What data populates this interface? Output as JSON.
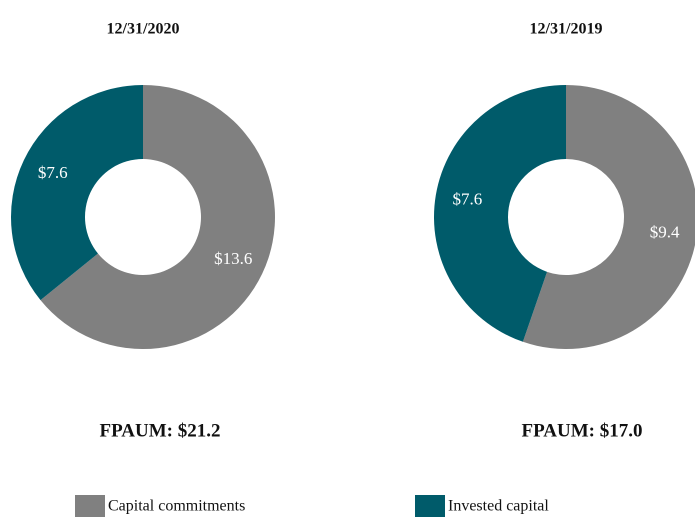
{
  "chart_data": [
    {
      "type": "pie",
      "title": "12/31/2020",
      "categories": [
        "Capital commitments",
        "Invested capital"
      ],
      "values": [
        13.6,
        7.6
      ],
      "value_labels": [
        "$13.6",
        "$7.6"
      ],
      "colors": [
        "#808080",
        "#005b6a"
      ],
      "annotation": "FPAUM: $21.2"
    },
    {
      "type": "pie",
      "title": "12/31/2019",
      "categories": [
        "Capital commitments",
        "Invested capital"
      ],
      "values": [
        9.4,
        7.6
      ],
      "value_labels": [
        "$9.4",
        "$7.6"
      ],
      "colors": [
        "#808080",
        "#005b6a"
      ],
      "annotation": "FPAUM: $17.0"
    }
  ]
}
